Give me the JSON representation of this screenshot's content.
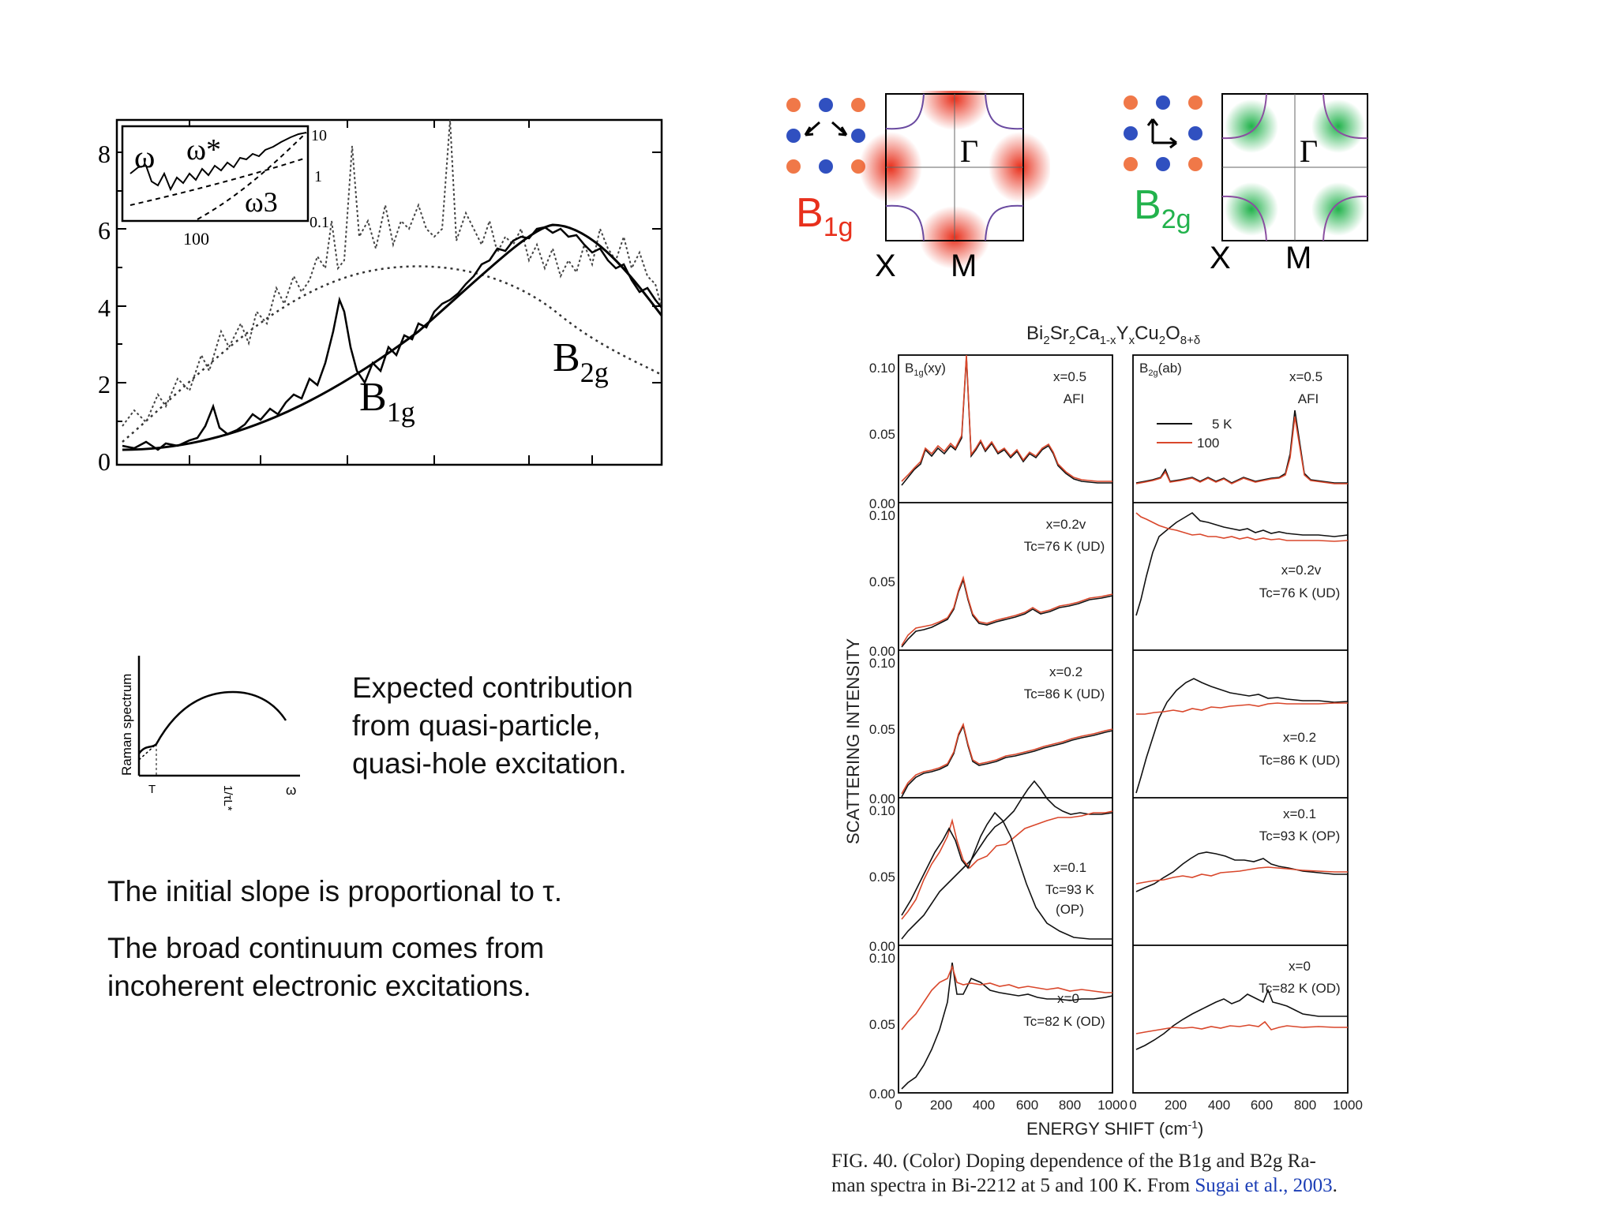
{
  "left_plot": {
    "yticks": [
      "8",
      "6",
      "4",
      "2",
      "0"
    ],
    "series_labels": {
      "b1g": {
        "main": "B",
        "sub": "1g"
      },
      "b2g": {
        "main": "B",
        "sub": "2g"
      }
    },
    "inset": {
      "labels": [
        "ω",
        "ω*",
        "ω3"
      ],
      "yticks": [
        "10",
        "1",
        "0.1"
      ],
      "xtick": "100"
    }
  },
  "schematic": {
    "ylabel": "Raman spectrum",
    "xticks": [
      "T",
      "1/τL*",
      "ω"
    ]
  },
  "text": {
    "expected": [
      "Expected contribution",
      "from quasi-particle,",
      "quasi-hole excitation."
    ],
    "slope": "The initial slope is proportional to τ.",
    "continuum": [
      "The broad continuum comes from",
      "incoherent electronic excitations."
    ]
  },
  "symmetry": {
    "b1g": {
      "main": "B",
      "sub": "1g",
      "gamma": "Γ",
      "x_label": "X",
      "m_label": "M",
      "color": "#e8301c"
    },
    "b2g": {
      "main": "B",
      "sub": "2g",
      "gamma": "Γ",
      "x_label": "X",
      "m_label": "M",
      "color": "#22b24c"
    }
  },
  "figure": {
    "compound": "Bi2Sr2Ca1-xYxCu2O8+δ",
    "ylabel": "SCATTERING INTENSITY",
    "xlabel": "ENERGY SHIFT (cm-1)",
    "yticks": [
      "0.10",
      "0.05",
      "0.00"
    ],
    "xticks": [
      "0",
      "200",
      "400",
      "600",
      "800",
      "1000"
    ],
    "left_panel_title": "B1g(xy)",
    "right_panel_title": "B2g(ab)",
    "legend": [
      {
        "label": "5 K",
        "color": "#111111"
      },
      {
        "label": "100",
        "color": "#d9472b"
      }
    ],
    "rows_left": [
      [
        "x=0.5",
        "AFI"
      ],
      [
        "x=0.2v",
        "Tc=76 K (UD)"
      ],
      [
        "x=0.2",
        "Tc=86 K (UD)"
      ],
      [
        "x=0.1",
        "Tc=93 K",
        "(OP)"
      ],
      [
        "x=0",
        "Tc=82 K (OD)"
      ]
    ],
    "rows_right": [
      [
        "x=0.5",
        "AFI"
      ],
      [
        "x=0.2v",
        "Tc=76 K (UD)"
      ],
      [
        "x=0.2",
        "Tc=86 K (UD)"
      ],
      [
        "x=0.1",
        "Tc=93 K (OP)"
      ],
      [
        "x=0",
        "Tc=82 K (OD)"
      ]
    ]
  },
  "caption": {
    "line1": "FIG. 40. (Color) Doping dependence of the B1g and B2g Ra-",
    "line2_prefix": "man spectra in Bi-2212 at 5 and 100 K. From ",
    "reference": "Sugai et al., 2003",
    "line2_suffix": "."
  }
}
